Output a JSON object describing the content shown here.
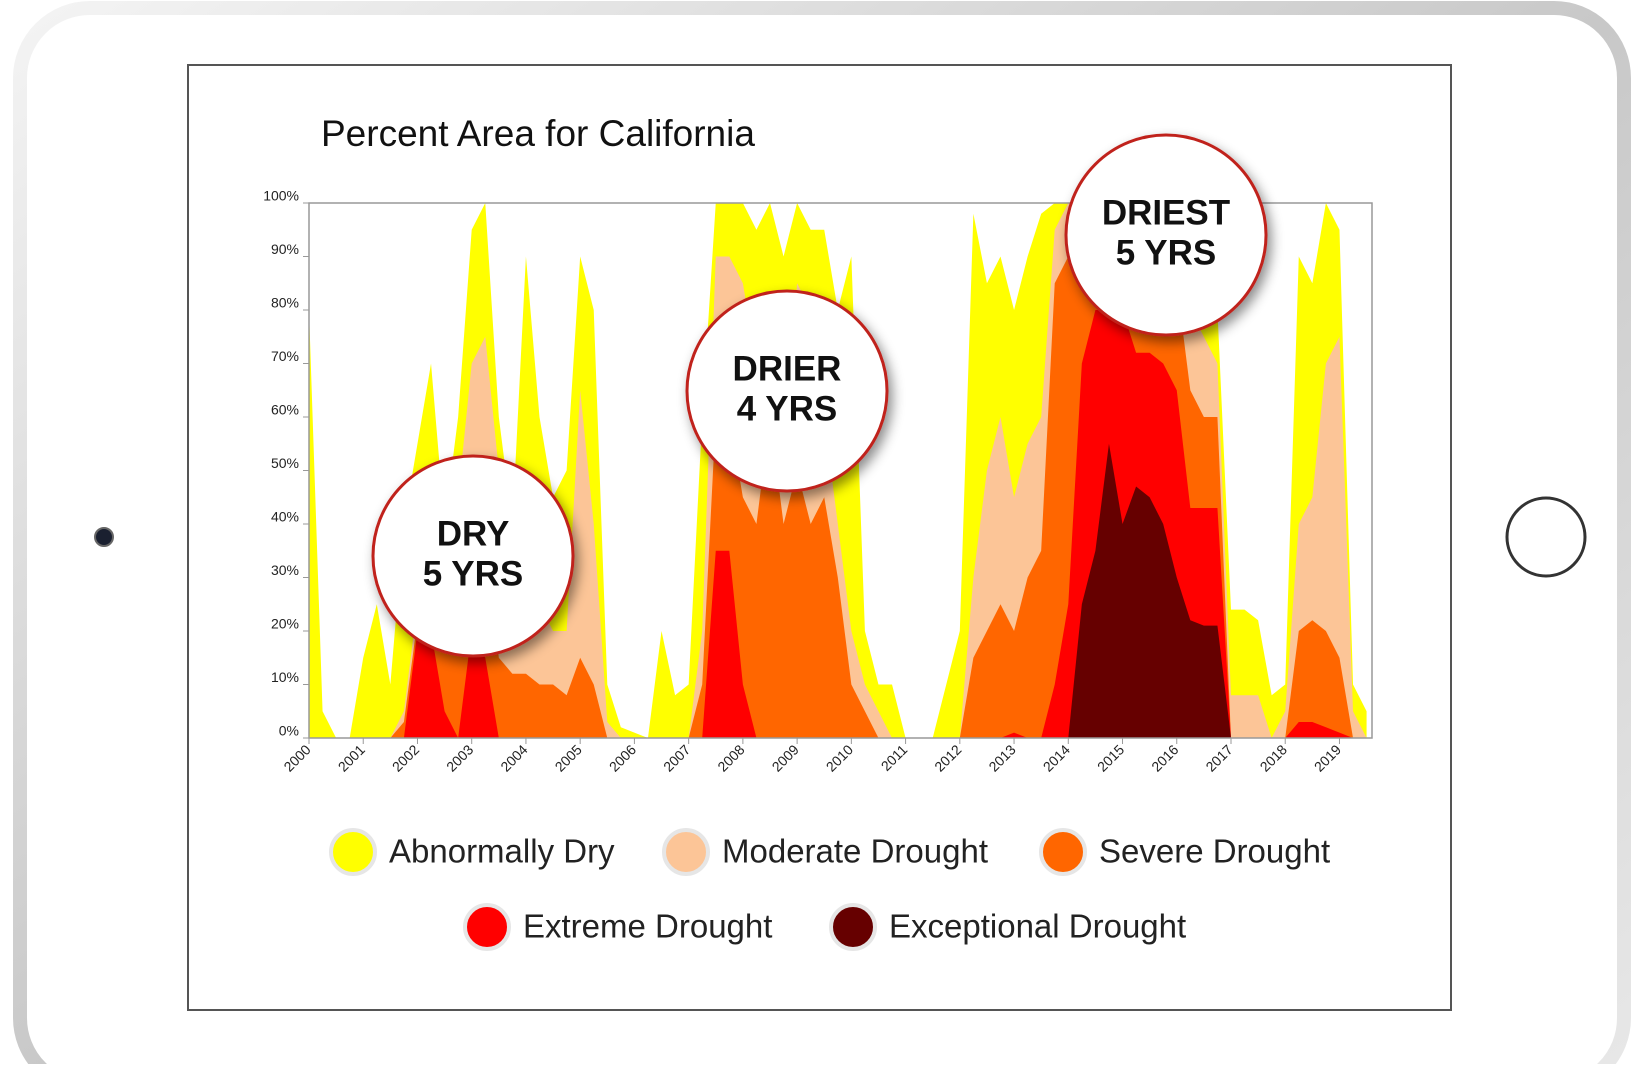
{
  "chart_data": {
    "type": "area",
    "title": "Percent Area for California",
    "x": [
      2000,
      2000.25,
      2000.5,
      2000.75,
      2001,
      2001.25,
      2001.5,
      2001.75,
      2002,
      2002.25,
      2002.5,
      2002.75,
      2003,
      2003.25,
      2003.5,
      2003.75,
      2004,
      2004.25,
      2004.5,
      2004.75,
      2005,
      2005.25,
      2005.5,
      2005.75,
      2006,
      2006.25,
      2006.5,
      2006.75,
      2007,
      2007.25,
      2007.5,
      2007.75,
      2008,
      2008.25,
      2008.5,
      2008.75,
      2009,
      2009.25,
      2009.5,
      2009.75,
      2010,
      2010.25,
      2010.5,
      2010.75,
      2011,
      2011.25,
      2011.5,
      2011.75,
      2012,
      2012.25,
      2012.5,
      2012.75,
      2013,
      2013.25,
      2013.5,
      2013.75,
      2014,
      2014.25,
      2014.5,
      2014.75,
      2015,
      2015.25,
      2015.5,
      2015.75,
      2016,
      2016.25,
      2016.5,
      2016.75,
      2017,
      2017.25,
      2017.5,
      2017.75,
      2018,
      2018.25,
      2018.5,
      2018.75,
      2019,
      2019.25,
      2019.5
    ],
    "series": [
      {
        "name": "Abnormally Dry",
        "color": "#ffff00",
        "values": [
          80,
          5,
          0,
          0,
          15,
          25,
          10,
          40,
          55,
          70,
          40,
          60,
          95,
          100,
          60,
          40,
          90,
          60,
          45,
          50,
          90,
          80,
          10,
          2,
          1,
          0,
          20,
          8,
          10,
          60,
          100,
          100,
          100,
          95,
          100,
          90,
          100,
          95,
          95,
          80,
          90,
          20,
          10,
          10,
          0,
          0,
          0,
          10,
          20,
          98,
          85,
          90,
          80,
          90,
          98,
          100,
          100,
          100,
          100,
          100,
          100,
          100,
          100,
          100,
          100,
          90,
          90,
          80,
          24,
          24,
          22,
          8,
          10,
          90,
          85,
          100,
          95,
          10,
          5
        ]
      },
      {
        "name": "Moderate Drought",
        "color": "#fcc597",
        "values": [
          0,
          0,
          0,
          0,
          0,
          0,
          0,
          5,
          25,
          30,
          25,
          45,
          70,
          75,
          50,
          30,
          40,
          25,
          20,
          20,
          65,
          40,
          3,
          0,
          0,
          0,
          0,
          0,
          0,
          20,
          90,
          90,
          85,
          70,
          80,
          50,
          85,
          80,
          60,
          40,
          20,
          10,
          5,
          0,
          0,
          0,
          0,
          0,
          0,
          30,
          50,
          60,
          45,
          55,
          60,
          95,
          100,
          100,
          100,
          100,
          100,
          100,
          100,
          95,
          95,
          80,
          75,
          70,
          8,
          8,
          8,
          0,
          5,
          40,
          45,
          70,
          75,
          5,
          0
        ]
      },
      {
        "name": "Severe Drought",
        "color": "#ff6600",
        "values": [
          0,
          0,
          0,
          0,
          0,
          0,
          0,
          3,
          22,
          25,
          20,
          30,
          40,
          40,
          15,
          12,
          12,
          10,
          10,
          8,
          15,
          10,
          0,
          0,
          0,
          0,
          0,
          0,
          0,
          10,
          60,
          60,
          45,
          40,
          60,
          40,
          50,
          40,
          45,
          30,
          10,
          5,
          0,
          0,
          0,
          0,
          0,
          0,
          0,
          15,
          20,
          25,
          20,
          30,
          35,
          85,
          90,
          85,
          85,
          95,
          95,
          95,
          95,
          90,
          85,
          65,
          60,
          60,
          0,
          0,
          0,
          0,
          0,
          20,
          22,
          20,
          15,
          0,
          0
        ]
      },
      {
        "name": "Extreme Drought",
        "color": "#ff0000",
        "values": [
          0,
          0,
          0,
          0,
          0,
          0,
          0,
          0,
          20,
          20,
          5,
          0,
          20,
          15,
          0,
          0,
          0,
          0,
          0,
          0,
          0,
          0,
          0,
          0,
          0,
          0,
          0,
          0,
          0,
          0,
          35,
          35,
          10,
          0,
          0,
          0,
          0,
          0,
          0,
          0,
          0,
          0,
          0,
          0,
          0,
          0,
          0,
          0,
          0,
          0,
          0,
          0,
          1,
          0,
          0,
          10,
          25,
          70,
          80,
          80,
          80,
          72,
          72,
          70,
          65,
          43,
          43,
          43,
          0,
          0,
          0,
          0,
          0,
          3,
          3,
          2,
          1,
          0,
          0
        ]
      },
      {
        "name": "Exceptional Drought",
        "color": "#660000",
        "values": [
          0,
          0,
          0,
          0,
          0,
          0,
          0,
          0,
          0,
          0,
          0,
          0,
          0,
          0,
          0,
          0,
          0,
          0,
          0,
          0,
          0,
          0,
          0,
          0,
          0,
          0,
          0,
          0,
          0,
          0,
          0,
          0,
          0,
          0,
          0,
          0,
          0,
          0,
          0,
          0,
          0,
          0,
          0,
          0,
          0,
          0,
          0,
          0,
          0,
          0,
          0,
          0,
          0,
          0,
          0,
          0,
          0,
          25,
          35,
          55,
          40,
          47,
          45,
          40,
          30,
          22,
          21,
          21,
          0,
          0,
          0,
          0,
          0,
          0,
          0,
          0,
          0,
          0,
          0
        ]
      }
    ],
    "xlim": [
      2000,
      2019.6
    ],
    "xticks": [
      2000,
      2001,
      2002,
      2003,
      2004,
      2005,
      2006,
      2007,
      2008,
      2009,
      2010,
      2011,
      2012,
      2013,
      2014,
      2015,
      2016,
      2017,
      2018,
      2019
    ],
    "ylim": [
      0,
      100
    ],
    "yticks": [
      {
        "value": 0,
        "label": "0%"
      },
      {
        "value": 10,
        "label": "10%"
      },
      {
        "value": 20,
        "label": "20%"
      },
      {
        "value": 30,
        "label": "30%"
      },
      {
        "value": 40,
        "label": "40%"
      },
      {
        "value": 50,
        "label": "50%"
      },
      {
        "value": 60,
        "label": "60%"
      },
      {
        "value": 70,
        "label": "70%"
      },
      {
        "value": 80,
        "label": "80%"
      },
      {
        "value": 90,
        "label": "90%"
      },
      {
        "value": 100,
        "label": "100%"
      }
    ],
    "annotations": [
      [
        "DRY",
        "5 YRS"
      ],
      [
        "DRIER",
        "4 YRS"
      ],
      [
        "DRIEST",
        "5 YRS"
      ]
    ]
  }
}
